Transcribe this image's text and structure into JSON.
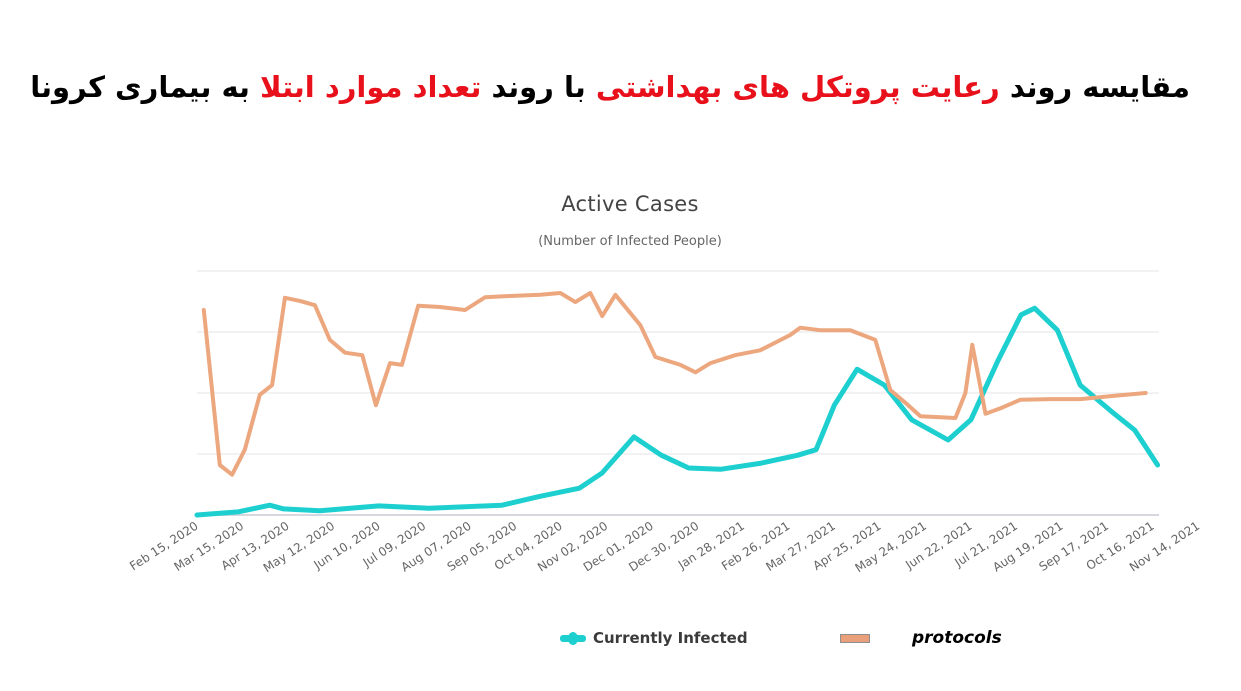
{
  "page": {
    "title_parts": [
      {
        "text": "مقایسه روند ",
        "highlight": false
      },
      {
        "text": "رعایت پروتکل های بهداشتی",
        "highlight": true
      },
      {
        "text": " با روند ",
        "highlight": false
      },
      {
        "text": "تعداد موارد ابتلا",
        "highlight": true
      },
      {
        "text": " به بیماری کرونا",
        "highlight": false
      }
    ],
    "highlight_color": "#e8111b"
  },
  "chart_data": {
    "type": "line",
    "title": "Active Cases",
    "subtitle": "(Number of Infected People)",
    "xlabel": "",
    "ylabel": "",
    "y_axis_labels_visible": false,
    "y_unit": "relative (gridline units, 0 = baseline, 4 = top gridline)",
    "ylim": [
      0,
      4
    ],
    "grid": true,
    "gridlines": [
      0,
      1,
      2,
      3,
      4
    ],
    "legend_position": "bottom",
    "x_tick_labels": [
      "Feb 15, 2020",
      "Mar 15, 2020",
      "Apr 13, 2020",
      "May 12, 2020",
      "Jun 10, 2020",
      "Jul 09, 2020",
      "Aug 07, 2020",
      "Sep 05, 2020",
      "Oct 04, 2020",
      "Nov 02, 2020",
      "Dec 01, 2020",
      "Dec 30, 2020",
      "Jan 28, 2021",
      "Feb 26, 2021",
      "Mar 27, 2021",
      "Apr 25, 2021",
      "May 24, 2021",
      "Jun 22, 2021",
      "Jul 21, 2021",
      "Aug 19, 2021",
      "Sep 17, 2021",
      "Oct 16, 2021",
      "Nov 14, 2021"
    ],
    "x_range_note": "x expressed as fractional tick index (0 = Feb 15, 2020; 21 = Nov 14, 2021)",
    "series": [
      {
        "name": "Currently Infected",
        "color": "#1ecfd0",
        "stroke_width": 5,
        "points": [
          [
            0,
            0
          ],
          [
            0.9,
            0.05
          ],
          [
            1.6,
            0.16
          ],
          [
            1.9,
            0.1
          ],
          [
            2.7,
            0.07
          ],
          [
            4.0,
            0.15
          ],
          [
            5.1,
            0.11
          ],
          [
            6.7,
            0.16
          ],
          [
            7.5,
            0.3
          ],
          [
            8.4,
            0.44
          ],
          [
            8.9,
            0.69
          ],
          [
            9.6,
            1.28
          ],
          [
            10.2,
            0.98
          ],
          [
            10.8,
            0.77
          ],
          [
            11.5,
            0.75
          ],
          [
            12.4,
            0.85
          ],
          [
            13.2,
            0.98
          ],
          [
            13.6,
            1.07
          ],
          [
            14.0,
            1.8
          ],
          [
            14.5,
            2.39
          ],
          [
            15.1,
            2.13
          ],
          [
            15.7,
            1.56
          ],
          [
            16.5,
            1.23
          ],
          [
            17.0,
            1.56
          ],
          [
            17.6,
            2.54
          ],
          [
            18.1,
            3.28
          ],
          [
            18.4,
            3.39
          ],
          [
            18.9,
            3.03
          ],
          [
            19.4,
            2.13
          ],
          [
            20.1,
            1.69
          ],
          [
            20.6,
            1.39
          ],
          [
            21.1,
            0.82
          ]
        ]
      },
      {
        "name": "protocols",
        "color": "#eca77e",
        "stroke_width": 4,
        "points": [
          [
            0.15,
            3.36
          ],
          [
            0.5,
            0.82
          ],
          [
            0.77,
            0.66
          ],
          [
            1.05,
            1.07
          ],
          [
            1.38,
            1.97
          ],
          [
            1.65,
            2.13
          ],
          [
            1.93,
            3.56
          ],
          [
            2.26,
            3.51
          ],
          [
            2.59,
            3.44
          ],
          [
            2.92,
            2.87
          ],
          [
            3.25,
            2.66
          ],
          [
            3.63,
            2.62
          ],
          [
            3.93,
            1.8
          ],
          [
            4.24,
            2.49
          ],
          [
            4.5,
            2.46
          ],
          [
            4.86,
            3.43
          ],
          [
            5.34,
            3.41
          ],
          [
            5.89,
            3.36
          ],
          [
            6.33,
            3.57
          ],
          [
            6.88,
            3.59
          ],
          [
            7.54,
            3.61
          ],
          [
            7.98,
            3.64
          ],
          [
            8.31,
            3.49
          ],
          [
            8.64,
            3.64
          ],
          [
            8.9,
            3.26
          ],
          [
            9.19,
            3.61
          ],
          [
            9.74,
            3.11
          ],
          [
            10.07,
            2.59
          ],
          [
            10.62,
            2.46
          ],
          [
            10.95,
            2.34
          ],
          [
            11.28,
            2.49
          ],
          [
            11.82,
            2.62
          ],
          [
            12.37,
            2.7
          ],
          [
            13.03,
            2.95
          ],
          [
            13.25,
            3.07
          ],
          [
            13.69,
            3.03
          ],
          [
            14.35,
            3.03
          ],
          [
            14.9,
            2.87
          ],
          [
            15.23,
            2.05
          ],
          [
            15.56,
            1.84
          ],
          [
            15.89,
            1.62
          ],
          [
            16.66,
            1.59
          ],
          [
            16.88,
            2.0
          ],
          [
            17.03,
            2.79
          ],
          [
            17.32,
            1.66
          ],
          [
            17.65,
            1.75
          ],
          [
            18.09,
            1.89
          ],
          [
            18.75,
            1.9
          ],
          [
            19.41,
            1.9
          ],
          [
            20.07,
            1.95
          ],
          [
            20.84,
            2.0
          ]
        ]
      }
    ]
  },
  "legend": {
    "items": [
      {
        "label": "Currently Infected",
        "color": "#1ecfd0"
      },
      {
        "label": "protocols",
        "color": "#e9a07a"
      }
    ]
  }
}
